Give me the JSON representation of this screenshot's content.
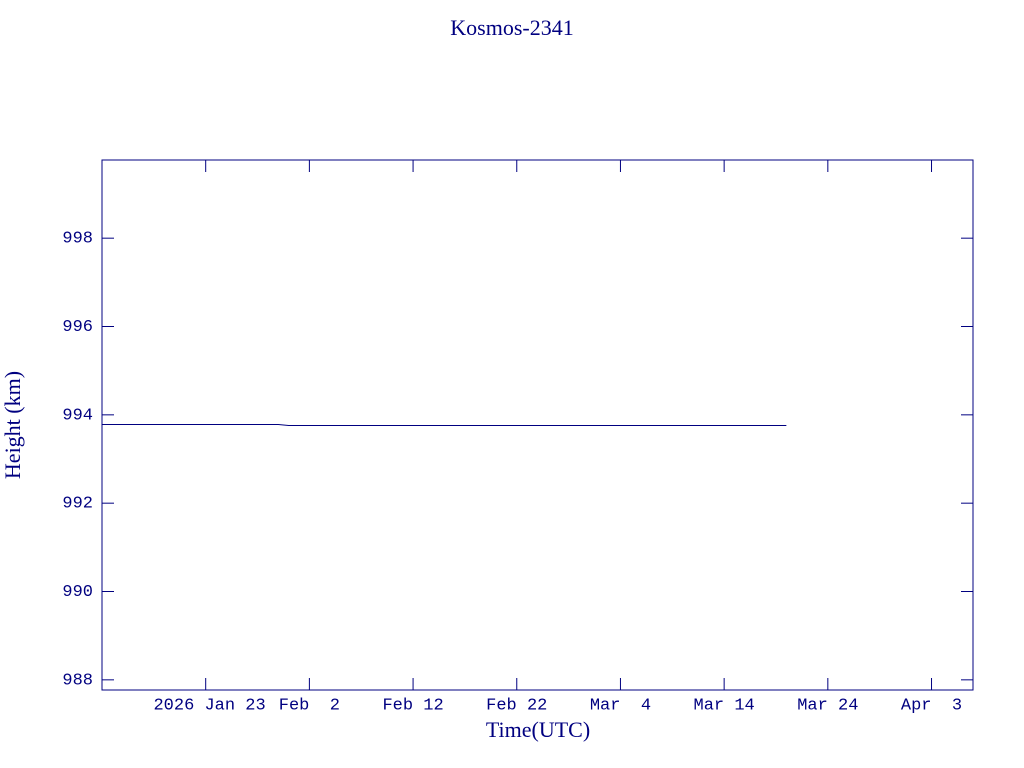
{
  "chart_data": {
    "type": "line",
    "title": "Kosmos-2341",
    "x_label": "Time(UTC)",
    "y_label": "Height (km)",
    "x": [
      "2026-01-13",
      "2026-01-30",
      "2026-01-31",
      "2026-03-20"
    ],
    "series": [
      {
        "color": "#000080",
        "values": [
          993.78,
          993.78,
          993.76,
          993.76
        ]
      }
    ],
    "xlim": [
      "2026-01-13",
      "2026-04-07"
    ],
    "xticks": [
      {
        "value": "2026-01-23",
        "label": "2026 Jan 23"
      },
      {
        "value": "2026-02-02",
        "label": "Feb  2"
      },
      {
        "value": "2026-02-12",
        "label": "Feb 12"
      },
      {
        "value": "2026-02-22",
        "label": "Feb 22"
      },
      {
        "value": "2026-03-04",
        "label": "Mar  4"
      },
      {
        "value": "2026-03-14",
        "label": "Mar 14"
      },
      {
        "value": "2026-03-24",
        "label": "Mar 24"
      },
      {
        "value": "2026-04-03",
        "label": "Apr  3"
      }
    ],
    "ylim": [
      987.77,
      999.77
    ],
    "yticks": [
      988,
      990,
      992,
      994,
      996,
      998
    ],
    "grid": false
  }
}
